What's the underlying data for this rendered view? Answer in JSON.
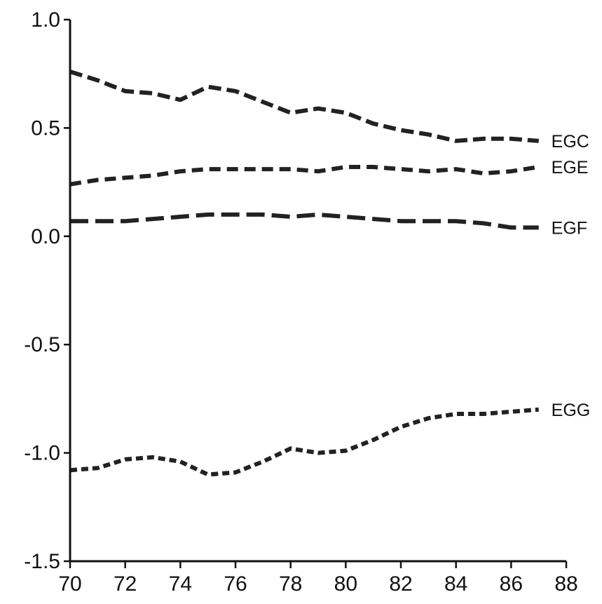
{
  "chart_data": {
    "type": "line",
    "title": "",
    "xlabel": "",
    "ylabel": "",
    "xlim": [
      70,
      88
    ],
    "ylim": [
      -1.5,
      1.0
    ],
    "x_ticks": [
      "70",
      "72",
      "74",
      "76",
      "78",
      "80",
      "82",
      "84",
      "86",
      "88"
    ],
    "y_ticks": [
      "1.0",
      "0.5",
      "0.0",
      "-0.5",
      "-1.0",
      "-1.5"
    ],
    "x": [
      70,
      71,
      72,
      73,
      74,
      75,
      76,
      77,
      78,
      79,
      80,
      81,
      82,
      83,
      84,
      85,
      86,
      87
    ],
    "grid": false,
    "legend": "none",
    "series": [
      {
        "name": "EGC",
        "values": [
          0.76,
          0.72,
          0.67,
          0.66,
          0.63,
          0.69,
          0.67,
          0.62,
          0.57,
          0.59,
          0.57,
          0.52,
          0.49,
          0.47,
          0.44,
          0.45,
          0.45,
          0.44
        ]
      },
      {
        "name": "EGE",
        "values": [
          0.24,
          0.26,
          0.27,
          0.28,
          0.3,
          0.31,
          0.31,
          0.31,
          0.31,
          0.3,
          0.32,
          0.32,
          0.31,
          0.3,
          0.31,
          0.29,
          0.3,
          0.32
        ]
      },
      {
        "name": "EGF",
        "values": [
          0.07,
          0.07,
          0.07,
          0.08,
          0.09,
          0.1,
          0.1,
          0.1,
          0.09,
          0.1,
          0.09,
          0.08,
          0.07,
          0.07,
          0.07,
          0.06,
          0.04,
          0.04
        ]
      },
      {
        "name": "EGG",
        "values": [
          -1.08,
          -1.07,
          -1.03,
          -1.02,
          -1.04,
          -1.1,
          -1.09,
          -1.04,
          -0.98,
          -1.0,
          -0.99,
          -0.94,
          -0.88,
          -0.84,
          -0.82,
          -0.82,
          -0.81,
          -0.8
        ]
      }
    ],
    "colors": {
      "line": "#222222",
      "axis": "#111111"
    }
  }
}
